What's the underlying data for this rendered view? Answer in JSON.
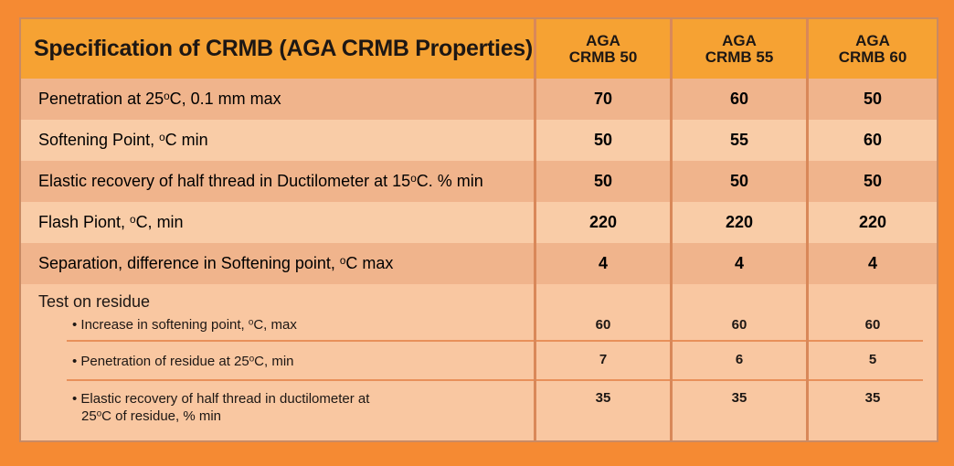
{
  "table": {
    "title": "Specification of CRMB (AGA CRMB Properties)",
    "columns": [
      {
        "line1": "AGA",
        "line2": "CRMB 50"
      },
      {
        "line1": "AGA",
        "line2": "CRMB 55"
      },
      {
        "line1": "AGA",
        "line2": "CRMB 60"
      }
    ],
    "rows": [
      {
        "label_pre": "Penetration at 25",
        "label_sup": "o",
        "label_post": "C, 0.1 mm max",
        "values": [
          "70",
          "60",
          "50"
        ]
      },
      {
        "label_pre": "Softening Point, ",
        "label_sup": "o",
        "label_post": "C min",
        "values": [
          "50",
          "55",
          "60"
        ]
      },
      {
        "label_pre": "Elastic recovery of half thread in Ductilometer at 15",
        "label_sup": "o",
        "label_post": "C. % min",
        "values": [
          "50",
          "50",
          "50"
        ]
      },
      {
        "label_pre": "Flash Piont, ",
        "label_sup": "o",
        "label_post": "C, min",
        "values": [
          "220",
          "220",
          "220"
        ]
      },
      {
        "label_pre": "Separation, difference in Softening point, ",
        "label_sup": "o",
        "label_post": "C max",
        "values": [
          "4",
          "4",
          "4"
        ]
      }
    ],
    "residue": {
      "heading": "Test on residue",
      "items": [
        {
          "label_pre": "• Increase in softening point, ",
          "label_sup": "o",
          "label_post": "C, max",
          "line2": "",
          "values": [
            "60",
            "60",
            "60"
          ]
        },
        {
          "label_pre": "• Penetration of residue at 25",
          "label_sup": "o",
          "label_post": "C, min",
          "line2": "",
          "values": [
            "7",
            "6",
            "5"
          ]
        },
        {
          "label_pre": "• Elastic recovery of half thread in ductilometer at",
          "label_sup": "",
          "label_post": "",
          "line2_pre": "25",
          "line2_sup": "o",
          "line2_post": "C of residue, % min",
          "values": [
            "35",
            "35",
            "35"
          ]
        }
      ]
    }
  }
}
